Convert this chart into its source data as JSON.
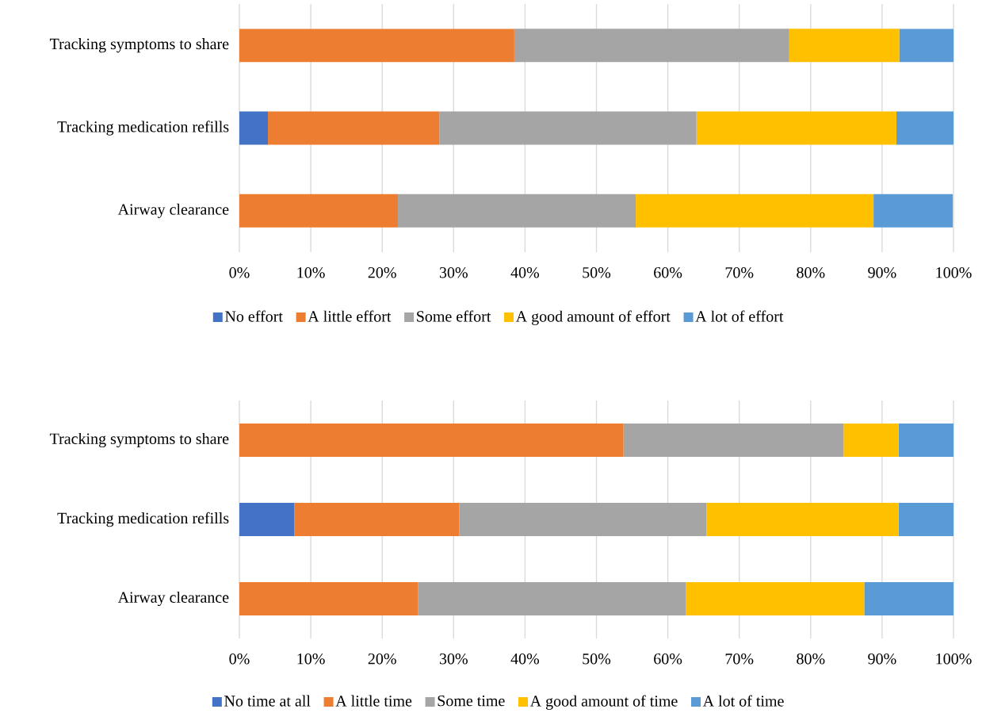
{
  "chart_data": [
    {
      "type": "bar",
      "orientation": "horizontal",
      "stacked": true,
      "categories": [
        "Tracking symptoms to share",
        "Tracking medication refills",
        "Airway clearance"
      ],
      "series": [
        {
          "name": "No effort",
          "color": "#4472c4",
          "values": [
            0,
            4,
            0
          ]
        },
        {
          "name": "A little effort",
          "color": "#ed7d31",
          "values": [
            38.5,
            24,
            22.2
          ]
        },
        {
          "name": "Some effort",
          "color": "#a5a5a5",
          "values": [
            38.5,
            36,
            33.3
          ]
        },
        {
          "name": "A good amount of effort",
          "color": "#ffc000",
          "values": [
            15.4,
            28,
            33.3
          ]
        },
        {
          "name": "A lot of effort",
          "color": "#5b9bd5",
          "values": [
            7.7,
            8,
            11.1
          ]
        }
      ],
      "xlim": [
        0,
        100
      ],
      "xticks": [
        {
          "value": 0,
          "label": "0%"
        },
        {
          "value": 10,
          "label": "10%"
        },
        {
          "value": 20,
          "label": "20%"
        },
        {
          "value": 30,
          "label": "30%"
        },
        {
          "value": 40,
          "label": "40%"
        },
        {
          "value": 50,
          "label": "50%"
        },
        {
          "value": 60,
          "label": "60%"
        },
        {
          "value": 70,
          "label": "70%"
        },
        {
          "value": 80,
          "label": "80%"
        },
        {
          "value": 90,
          "label": "90%"
        },
        {
          "value": 100,
          "label": "100%"
        }
      ],
      "grid": "x",
      "legend": "bottom"
    },
    {
      "type": "bar",
      "orientation": "horizontal",
      "stacked": true,
      "categories": [
        "Tracking symptoms to share",
        "Tracking medication refills",
        "Airway clearance"
      ],
      "series": [
        {
          "name": "No time at all",
          "color": "#4472c4",
          "values": [
            0,
            7.7,
            0
          ]
        },
        {
          "name": "A little time",
          "color": "#ed7d31",
          "values": [
            53.8,
            23.1,
            25
          ]
        },
        {
          "name": "Some time",
          "color": "#a5a5a5",
          "values": [
            30.8,
            34.6,
            37.5
          ]
        },
        {
          "name": "A good amount of time",
          "color": "#ffc000",
          "values": [
            7.7,
            26.9,
            25
          ]
        },
        {
          "name": "A lot of time",
          "color": "#5b9bd5",
          "values": [
            7.7,
            7.7,
            12.5
          ]
        }
      ],
      "xlim": [
        0,
        100
      ],
      "xticks": [
        {
          "value": 0,
          "label": "0%"
        },
        {
          "value": 10,
          "label": "10%"
        },
        {
          "value": 20,
          "label": "20%"
        },
        {
          "value": 30,
          "label": "30%"
        },
        {
          "value": 40,
          "label": "40%"
        },
        {
          "value": 50,
          "label": "50%"
        },
        {
          "value": 60,
          "label": "60%"
        },
        {
          "value": 70,
          "label": "70%"
        },
        {
          "value": 80,
          "label": "80%"
        },
        {
          "value": 90,
          "label": "90%"
        },
        {
          "value": 100,
          "label": "100%"
        }
      ],
      "grid": "x",
      "legend": "bottom"
    }
  ]
}
